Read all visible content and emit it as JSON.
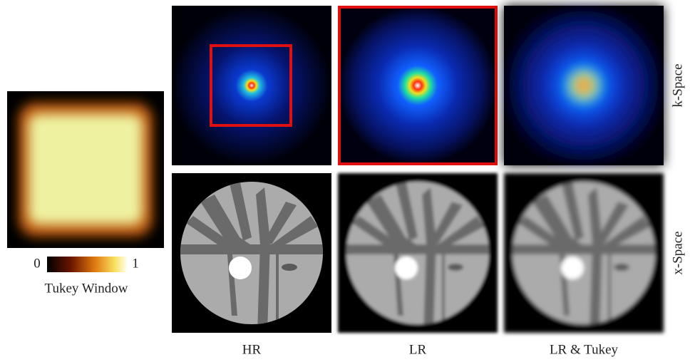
{
  "tukey": {
    "colorbar_min": "0",
    "colorbar_max": "1",
    "label": "Tukey Window"
  },
  "columns": [
    "HR",
    "LR",
    "LR & Tukey"
  ],
  "rows": [
    "k-Space",
    "x-Space"
  ]
}
